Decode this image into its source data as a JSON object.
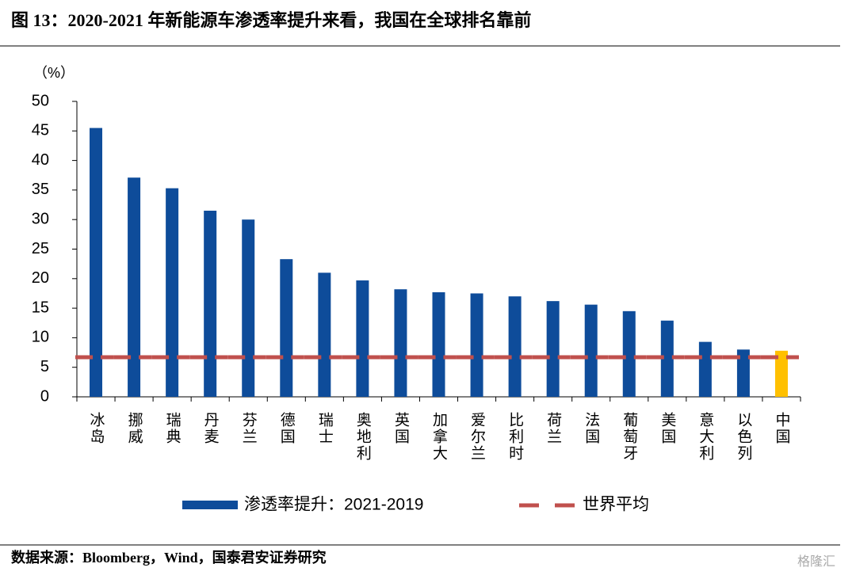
{
  "chart_data": {
    "type": "bar",
    "title": "图 13：2020-2021 年新能源车渗透率提升来看，我国在全球排名靠前",
    "y_unit_label": "（%）",
    "categories": [
      "冰岛",
      "挪威",
      "瑞典",
      "丹麦",
      "芬兰",
      "德国",
      "瑞士",
      "奥地利",
      "英国",
      "加拿大",
      "爱尔兰",
      "比利时",
      "荷兰",
      "法国",
      "葡萄牙",
      "美国",
      "意大利",
      "以色列",
      "中国"
    ],
    "series": [
      {
        "name": "渗透率提升：2021-2019",
        "color": "#0e4c9a",
        "values": [
          45.5,
          37.1,
          35.3,
          31.5,
          30.0,
          23.3,
          21.0,
          19.7,
          18.2,
          17.7,
          17.5,
          17.0,
          16.2,
          15.6,
          14.5,
          12.9,
          9.3,
          8.0,
          7.8
        ],
        "colors": [
          "#0e4c9a",
          "#0e4c9a",
          "#0e4c9a",
          "#0e4c9a",
          "#0e4c9a",
          "#0e4c9a",
          "#0e4c9a",
          "#0e4c9a",
          "#0e4c9a",
          "#0e4c9a",
          "#0e4c9a",
          "#0e4c9a",
          "#0e4c9a",
          "#0e4c9a",
          "#0e4c9a",
          "#0e4c9a",
          "#0e4c9a",
          "#0e4c9a",
          "#ffc000"
        ]
      }
    ],
    "reference_line": {
      "name": "世界平均",
      "value": 6.7,
      "color": "#c0504d"
    },
    "ylim": [
      0,
      50
    ],
    "yticks": [
      0,
      5,
      10,
      15,
      20,
      25,
      30,
      35,
      40,
      45,
      50
    ],
    "source": "数据来源：Bloomberg，Wind，国泰君安证券研究",
    "watermark": "格隆汇"
  }
}
